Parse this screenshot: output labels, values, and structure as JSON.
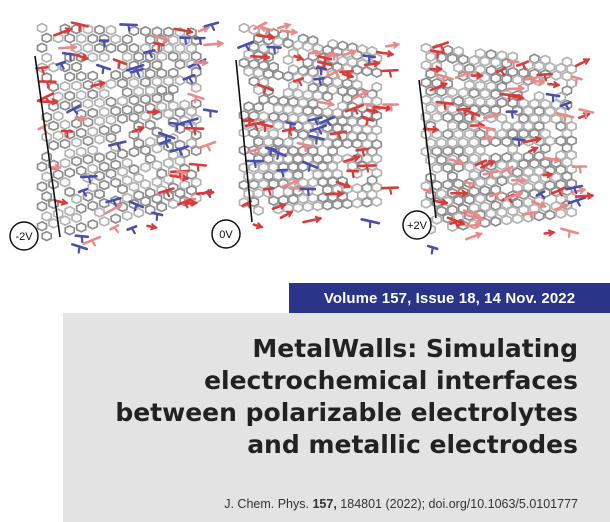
{
  "figure": {
    "panels": [
      {
        "label": "-2V"
      },
      {
        "label": "0V"
      },
      {
        "label": "+2V"
      }
    ],
    "colors": {
      "cation": "#d93a3a",
      "cation_light": "#e88a8a",
      "anion": "#4a4fae",
      "electrode": "#9a9a9a"
    }
  },
  "banner": {
    "text": "Volume 157, Issue 18, 14 Nov. 2022"
  },
  "title": {
    "lines": [
      "MetalWalls: Simulating",
      "electrochemical interfaces",
      "between polarizable electrolytes",
      "and metallic electrodes"
    ]
  },
  "citation": {
    "prefix": "J. Chem. Phys. ",
    "volume": "157,",
    "suffix": " 184801 (2022); doi.org/10.1063/5.0101777"
  },
  "style": {
    "banner_color": "#2a3589",
    "panel_color": "#e3e3e3"
  }
}
